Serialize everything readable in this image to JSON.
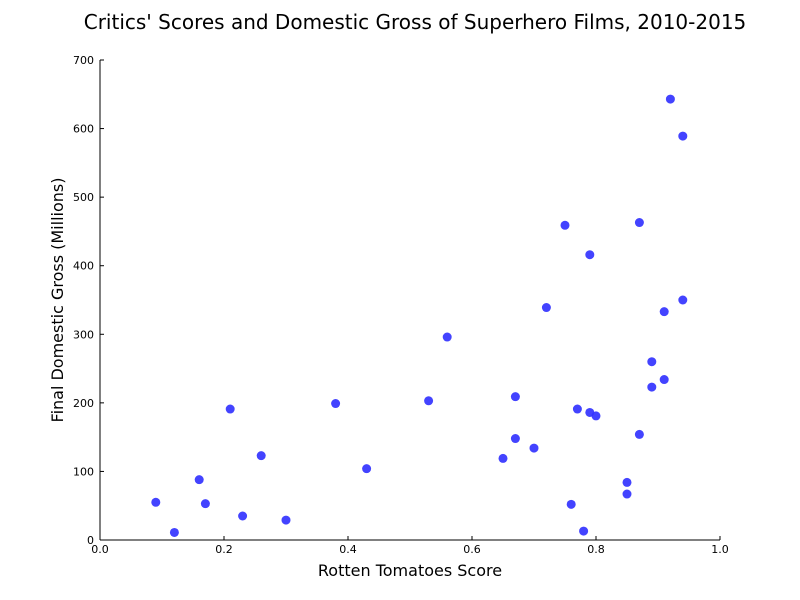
{
  "chart_data": {
    "type": "scatter",
    "title": "Critics' Scores and Domestic Gross of Superhero Films, 2010-2015",
    "xlabel": "Rotten Tomatoes Score",
    "ylabel": "Final Domestic Gross (Millions)",
    "xlim": [
      0.0,
      1.0
    ],
    "ylim": [
      0,
      700
    ],
    "xticks": [
      "0.0",
      "0.2",
      "0.4",
      "0.6",
      "0.8",
      "1.0"
    ],
    "yticks": [
      "0",
      "100",
      "200",
      "300",
      "400",
      "500",
      "600",
      "700"
    ],
    "marker_color": "#3333ff",
    "grid": false,
    "points": [
      {
        "x": 0.09,
        "y": 55
      },
      {
        "x": 0.12,
        "y": 11
      },
      {
        "x": 0.16,
        "y": 88
      },
      {
        "x": 0.17,
        "y": 53
      },
      {
        "x": 0.21,
        "y": 191
      },
      {
        "x": 0.23,
        "y": 35
      },
      {
        "x": 0.26,
        "y": 123
      },
      {
        "x": 0.3,
        "y": 29
      },
      {
        "x": 0.38,
        "y": 199
      },
      {
        "x": 0.43,
        "y": 104
      },
      {
        "x": 0.53,
        "y": 203
      },
      {
        "x": 0.56,
        "y": 296
      },
      {
        "x": 0.65,
        "y": 119
      },
      {
        "x": 0.67,
        "y": 209
      },
      {
        "x": 0.67,
        "y": 148
      },
      {
        "x": 0.7,
        "y": 134
      },
      {
        "x": 0.72,
        "y": 339
      },
      {
        "x": 0.75,
        "y": 459
      },
      {
        "x": 0.76,
        "y": 52
      },
      {
        "x": 0.77,
        "y": 191
      },
      {
        "x": 0.78,
        "y": 13
      },
      {
        "x": 0.79,
        "y": 416
      },
      {
        "x": 0.79,
        "y": 186
      },
      {
        "x": 0.8,
        "y": 181
      },
      {
        "x": 0.85,
        "y": 84
      },
      {
        "x": 0.85,
        "y": 67
      },
      {
        "x": 0.87,
        "y": 463
      },
      {
        "x": 0.87,
        "y": 154
      },
      {
        "x": 0.89,
        "y": 260
      },
      {
        "x": 0.89,
        "y": 223
      },
      {
        "x": 0.91,
        "y": 333
      },
      {
        "x": 0.91,
        "y": 234
      },
      {
        "x": 0.92,
        "y": 643
      },
      {
        "x": 0.94,
        "y": 589
      },
      {
        "x": 0.94,
        "y": 350
      }
    ]
  }
}
